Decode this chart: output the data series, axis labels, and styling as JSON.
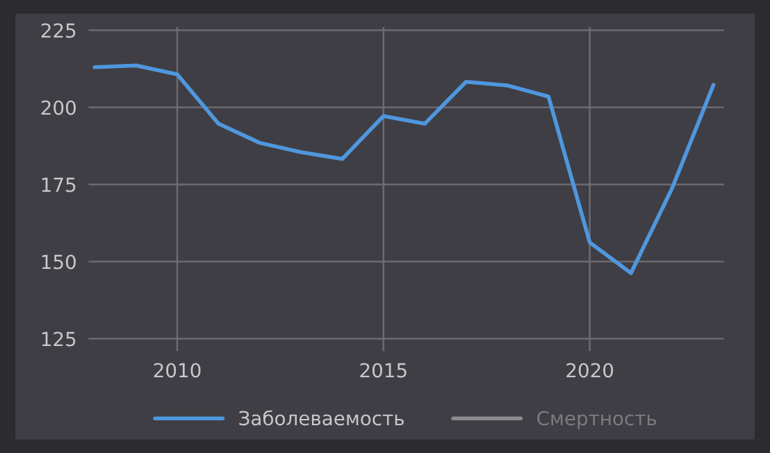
{
  "chart_data": {
    "type": "line",
    "x": [
      2008,
      2009,
      2010,
      2011,
      2012,
      2013,
      2014,
      2015,
      2016,
      2017,
      2018,
      2019,
      2020,
      2021,
      2022,
      2023
    ],
    "series": [
      {
        "name": "Заболеваемость",
        "color": "#4f97de",
        "values": [
          213,
          213.6,
          210.7,
          194.7,
          188.5,
          185.5,
          183.3,
          197.2,
          194.7,
          208.3,
          207.1,
          203.5,
          156.2,
          146.3,
          173.9,
          207.3
        ]
      },
      {
        "name": "Смертность",
        "color": "#8a8a8e",
        "values": [
          null,
          null,
          null,
          null,
          null,
          null,
          null,
          null,
          null,
          null,
          null,
          null,
          null,
          null,
          null,
          null
        ]
      }
    ],
    "xlim": [
      2007.85,
      2023.25
    ],
    "xticks": [
      2010,
      2015,
      2020
    ],
    "ylim": [
      121,
      226
    ],
    "yticks": [
      125,
      150,
      175,
      200,
      225
    ],
    "grid": true,
    "legend": "bottom",
    "marker": "none",
    "line_style": "solid"
  }
}
